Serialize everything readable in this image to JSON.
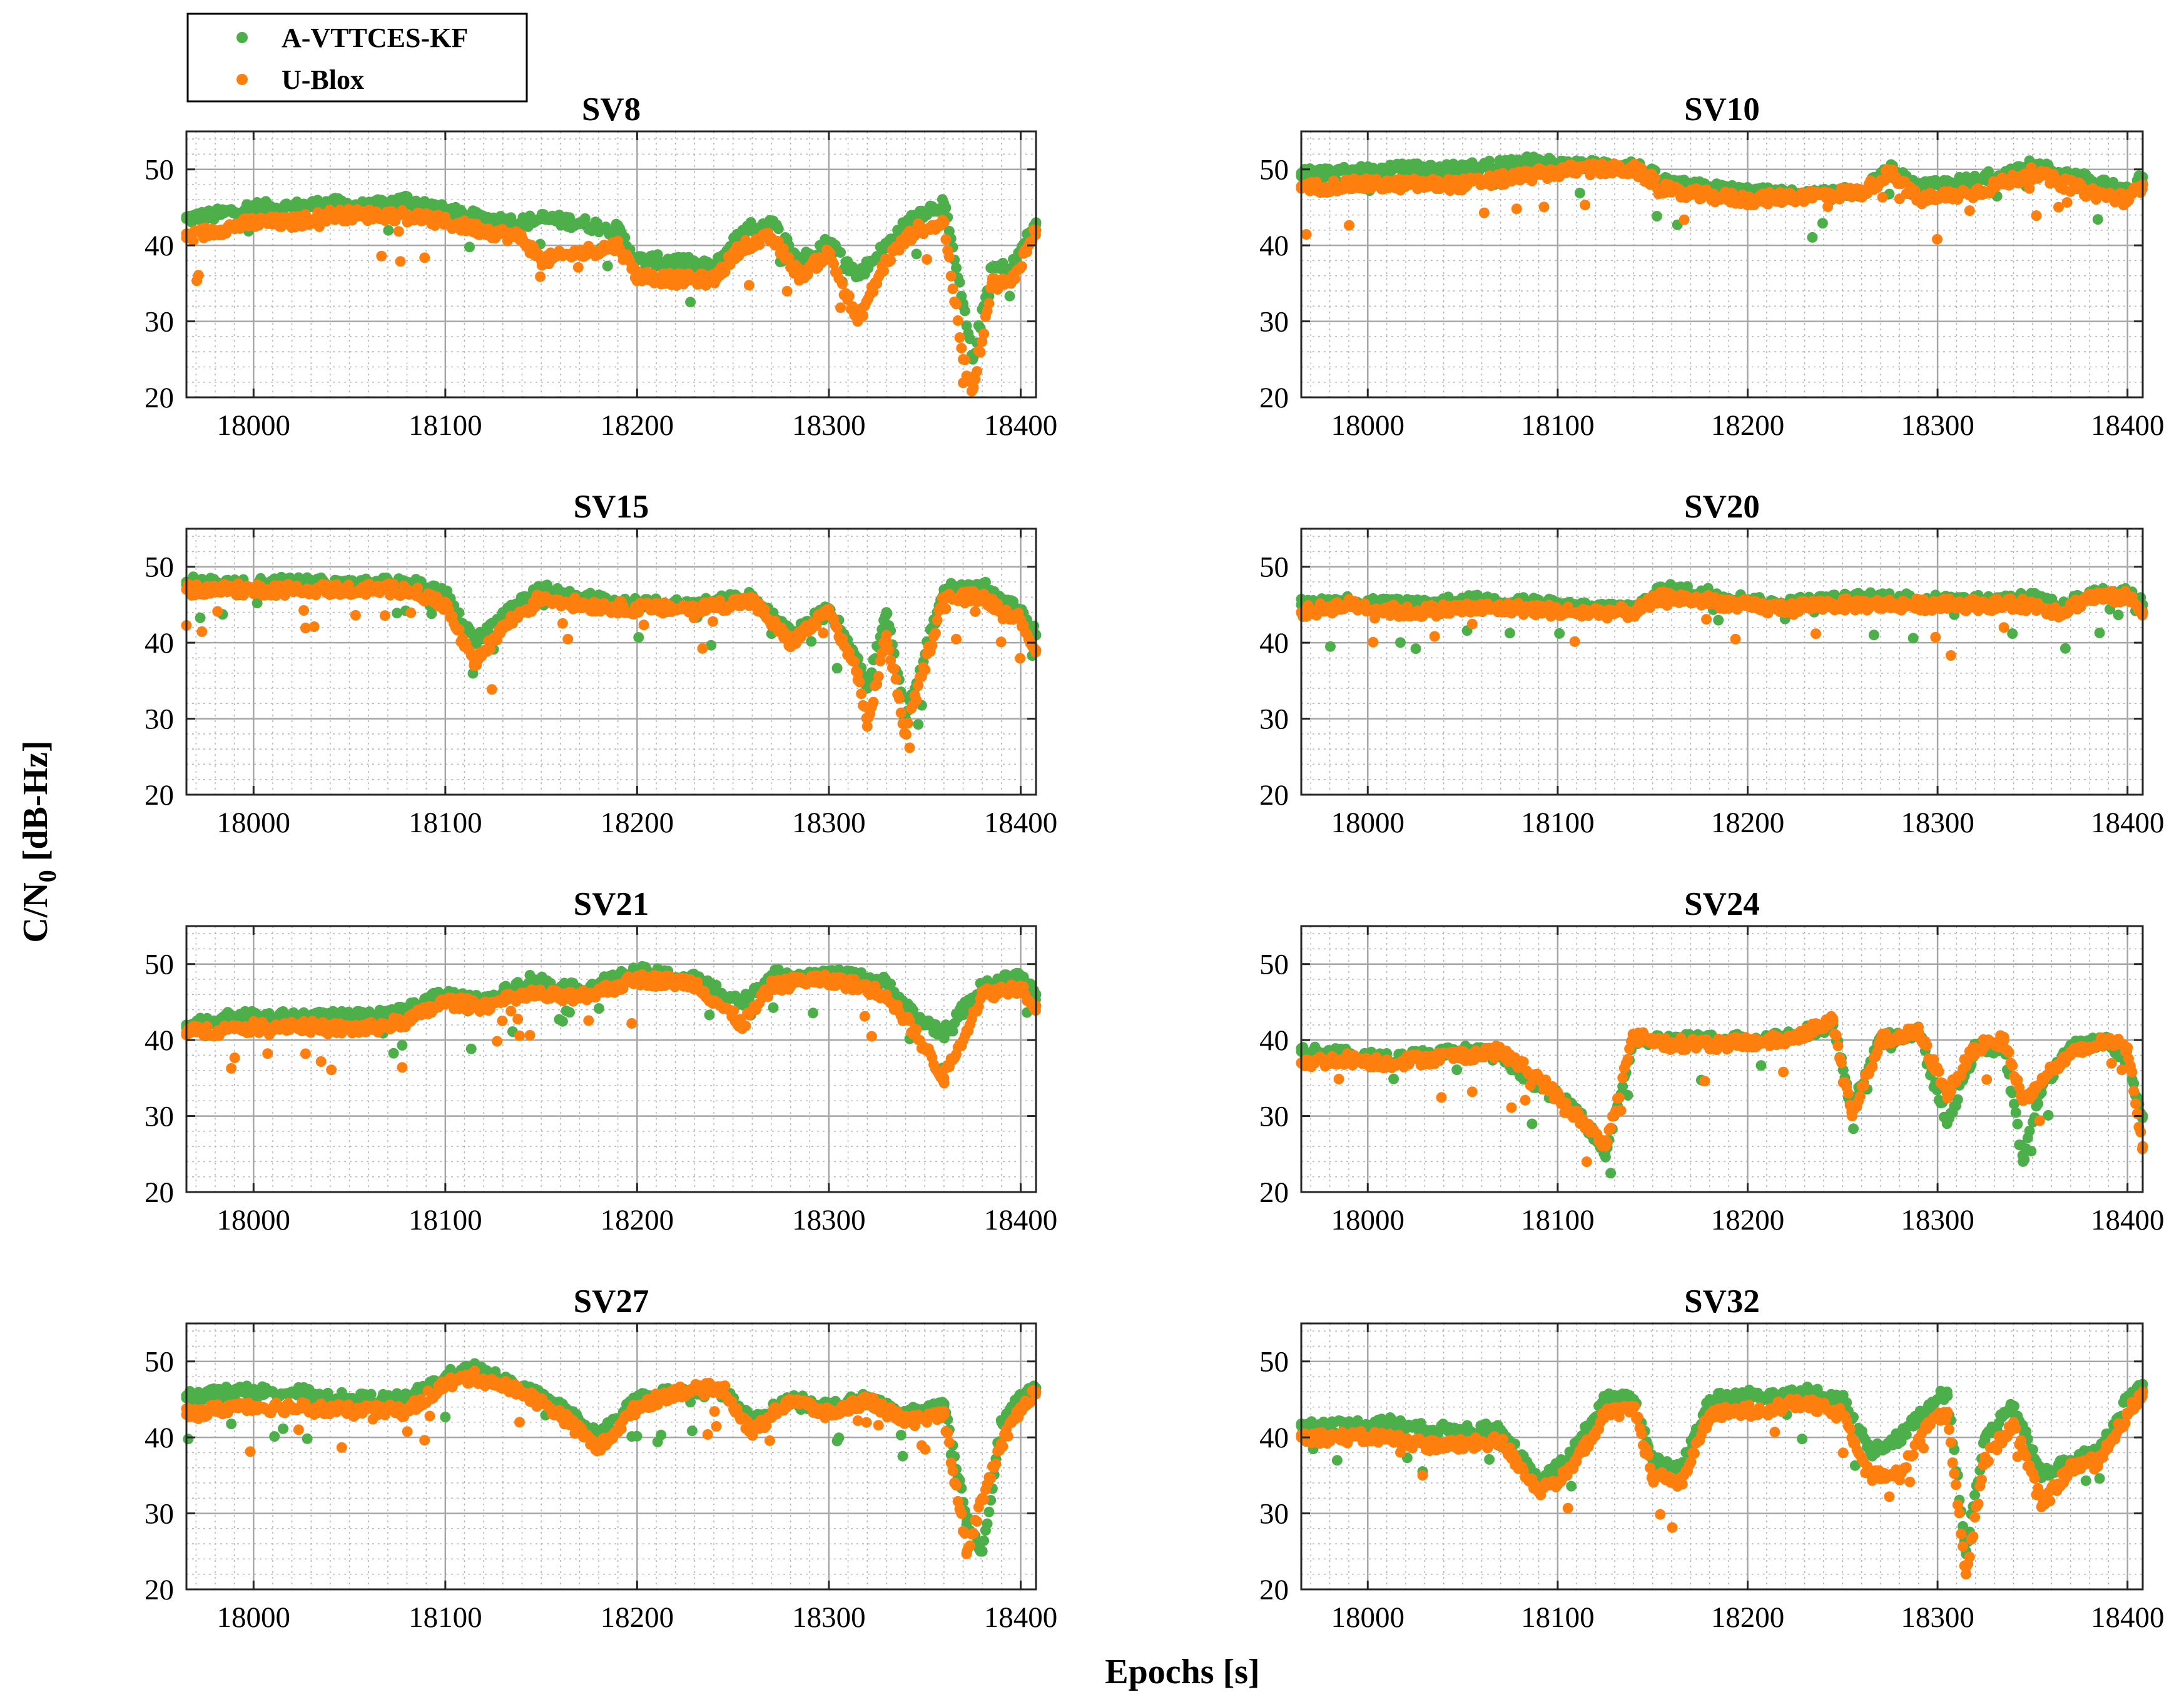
{
  "figure": {
    "ylabel_main": "C/N",
    "ylabel_sub": "0",
    "ylabel_unit": " [dB-Hz]",
    "xlabel": "Epochs [s]"
  },
  "legend": {
    "items": [
      {
        "label": "A-VTTCES-KF",
        "color": "#4daf4a"
      },
      {
        "label": "U-Blox",
        "color": "#ff7f0e"
      }
    ]
  },
  "chart_data": [
    {
      "type": "scatter",
      "title": "SV8",
      "xlim": [
        17965,
        18408
      ],
      "ylim": [
        20,
        55
      ],
      "xticks": [
        18000,
        18100,
        18200,
        18300,
        18400
      ],
      "yticks": [
        20,
        30,
        40,
        50
      ],
      "series": [
        {
          "name": "A-VTTCES-KF",
          "color": "#4daf4a",
          "x": [
            17965,
            17980,
            18000,
            18020,
            18040,
            18060,
            18080,
            18100,
            18120,
            18140,
            18150,
            18170,
            18190,
            18200,
            18220,
            18240,
            18255,
            18270,
            18285,
            18300,
            18315,
            18330,
            18345,
            18360,
            18370,
            18375,
            18385,
            18395,
            18408
          ],
          "y": [
            43.5,
            44,
            45,
            45,
            45.5,
            45,
            46,
            44.5,
            43.5,
            43,
            43.5,
            43,
            42,
            38,
            38,
            37,
            42,
            43,
            38,
            40.5,
            36,
            40,
            44,
            45.5,
            32,
            25,
            37,
            37,
            43
          ]
        },
        {
          "name": "U-Blox",
          "color": "#ff7f0e",
          "x": [
            17965,
            17980,
            18000,
            18020,
            18040,
            18060,
            18080,
            18100,
            18120,
            18140,
            18150,
            18170,
            18190,
            18200,
            18220,
            18240,
            18255,
            18270,
            18285,
            18300,
            18315,
            18330,
            18345,
            18360,
            18370,
            18375,
            18385,
            18395,
            18408
          ],
          "y": [
            41,
            42,
            43,
            43,
            44,
            44,
            44,
            43,
            42,
            41,
            38,
            39,
            40,
            36,
            35.5,
            35.5,
            40,
            41,
            36,
            39,
            30,
            38,
            42,
            43,
            25,
            21,
            35,
            35,
            42
          ]
        }
      ]
    },
    {
      "type": "scatter",
      "title": "SV10",
      "xlim": [
        17965,
        18408
      ],
      "ylim": [
        20,
        55
      ],
      "xticks": [
        18000,
        18100,
        18200,
        18300,
        18400
      ],
      "yticks": [
        20,
        30,
        40,
        50
      ],
      "series": [
        {
          "name": "A-VTTCES-KF",
          "color": "#4daf4a",
          "x": [
            17965,
            17990,
            18020,
            18050,
            18080,
            18110,
            18140,
            18160,
            18180,
            18200,
            18230,
            18260,
            18275,
            18290,
            18320,
            18350,
            18380,
            18400,
            18408
          ],
          "y": [
            49.5,
            49.5,
            50,
            50,
            51,
            50.5,
            50.5,
            48,
            47.5,
            47,
            46.5,
            47,
            50,
            47.5,
            48.5,
            50.5,
            48.5,
            47,
            49
          ]
        },
        {
          "name": "U-Blox",
          "color": "#ff7f0e",
          "x": [
            17965,
            17990,
            18020,
            18050,
            18080,
            18110,
            18140,
            18160,
            18180,
            18200,
            18230,
            18260,
            18275,
            18290,
            18320,
            18350,
            18380,
            18400,
            18408
          ],
          "y": [
            47.5,
            48,
            48,
            48,
            49,
            50,
            50,
            47,
            46.5,
            46,
            46.5,
            47,
            49.5,
            46,
            47,
            49.5,
            47,
            46,
            48
          ]
        }
      ]
    },
    {
      "type": "scatter",
      "title": "SV15",
      "xlim": [
        17965,
        18408
      ],
      "ylim": [
        20,
        55
      ],
      "xticks": [
        18000,
        18100,
        18200,
        18300,
        18400
      ],
      "yticks": [
        20,
        30,
        40,
        50
      ],
      "series": [
        {
          "name": "A-VTTCES-KF",
          "color": "#4daf4a",
          "x": [
            17965,
            17990,
            18020,
            18050,
            18080,
            18100,
            18115,
            18130,
            18150,
            18170,
            18200,
            18230,
            18260,
            18280,
            18300,
            18315,
            18320,
            18330,
            18340,
            18360,
            18380,
            18400,
            18408
          ],
          "y": [
            48,
            47.5,
            48,
            47.5,
            48,
            46.5,
            40,
            44,
            47,
            46,
            45,
            45,
            46,
            41,
            44.5,
            38,
            34,
            44,
            30,
            47,
            47.5,
            44,
            41
          ]
        },
        {
          "name": "U-Blox",
          "color": "#ff7f0e",
          "x": [
            17965,
            17990,
            18020,
            18050,
            18080,
            18100,
            18115,
            18130,
            18150,
            18170,
            18200,
            18230,
            18260,
            18280,
            18300,
            18315,
            18320,
            18330,
            18340,
            18360,
            18380,
            18400,
            18408
          ],
          "y": [
            47,
            47,
            47,
            47,
            47,
            45,
            37,
            42,
            46,
            45,
            44.5,
            44.5,
            45.5,
            40,
            44,
            36,
            29,
            41,
            28,
            46,
            46,
            43,
            39
          ]
        }
      ]
    },
    {
      "type": "scatter",
      "title": "SV20",
      "xlim": [
        17965,
        18408
      ],
      "ylim": [
        20,
        55
      ],
      "xticks": [
        18000,
        18100,
        18200,
        18300,
        18400
      ],
      "yticks": [
        20,
        30,
        40,
        50
      ],
      "series": [
        {
          "name": "A-VTTCES-KF",
          "color": "#4daf4a",
          "x": [
            17965,
            17990,
            18020,
            18050,
            18080,
            18110,
            18140,
            18155,
            18180,
            18210,
            18240,
            18270,
            18300,
            18330,
            18350,
            18365,
            18380,
            18400,
            18408
          ],
          "y": [
            45,
            45.5,
            45,
            45.5,
            45.5,
            44.5,
            44.5,
            47,
            46.5,
            45,
            45.5,
            46,
            45.5,
            45.5,
            46,
            44.5,
            46.5,
            46.5,
            45
          ]
        },
        {
          "name": "U-Blox",
          "color": "#ff7f0e",
          "x": [
            17965,
            17990,
            18020,
            18050,
            18080,
            18110,
            18140,
            18155,
            18180,
            18210,
            18240,
            18270,
            18300,
            18330,
            18350,
            18365,
            18380,
            18400,
            18408
          ],
          "y": [
            44,
            45,
            44,
            44.5,
            44.5,
            44,
            44,
            46,
            45.5,
            44.5,
            45,
            45,
            45,
            45,
            45,
            44,
            46,
            46,
            44
          ]
        }
      ]
    },
    {
      "type": "scatter",
      "title": "SV21",
      "xlim": [
        17965,
        18408
      ],
      "ylim": [
        20,
        55
      ],
      "xticks": [
        18000,
        18100,
        18200,
        18300,
        18400
      ],
      "yticks": [
        20,
        30,
        40,
        50
      ],
      "series": [
        {
          "name": "A-VTTCES-KF",
          "color": "#4daf4a",
          "x": [
            17965,
            17990,
            18020,
            18040,
            18060,
            18080,
            18100,
            18120,
            18145,
            18170,
            18200,
            18230,
            18255,
            18270,
            18290,
            18310,
            18330,
            18345,
            18360,
            18380,
            18400,
            18408
          ],
          "y": [
            42,
            43,
            43,
            43,
            43,
            44,
            46,
            45,
            48,
            46.5,
            49,
            48,
            45,
            48.5,
            48.5,
            48.5,
            47.5,
            43,
            41,
            47,
            48.5,
            46
          ]
        },
        {
          "name": "U-Blox",
          "color": "#ff7f0e",
          "x": [
            17965,
            17990,
            18020,
            18040,
            18060,
            18080,
            18100,
            18120,
            18145,
            18170,
            18200,
            18230,
            18255,
            18270,
            18290,
            18310,
            18330,
            18345,
            18360,
            18380,
            18400,
            18408
          ],
          "y": [
            41,
            41.5,
            42,
            41.5,
            41.5,
            42.5,
            45,
            44.5,
            46,
            45.5,
            48,
            47.5,
            42,
            47,
            48,
            47.5,
            46,
            41,
            35,
            46,
            47,
            44.5
          ]
        }
      ]
    },
    {
      "type": "scatter",
      "title": "SV24",
      "xlim": [
        17965,
        18408
      ],
      "ylim": [
        20,
        55
      ],
      "xticks": [
        18000,
        18100,
        18200,
        18300,
        18400
      ],
      "yticks": [
        20,
        30,
        40,
        50
      ],
      "series": [
        {
          "name": "A-VTTCES-KF",
          "color": "#4daf4a",
          "x": [
            17965,
            17990,
            18010,
            18030,
            18050,
            18070,
            18090,
            18110,
            18125,
            18140,
            18160,
            18190,
            18220,
            18245,
            18255,
            18270,
            18290,
            18305,
            18320,
            18335,
            18345,
            18355,
            18370,
            18390,
            18400,
            18408
          ],
          "y": [
            38.5,
            38,
            37.5,
            38,
            38.5,
            38,
            34,
            31,
            25,
            40,
            40,
            40,
            40.5,
            42,
            31,
            40,
            41,
            29,
            39,
            39,
            24,
            34,
            39,
            40,
            37,
            30
          ]
        },
        {
          "name": "U-Blox",
          "color": "#ff7f0e",
          "x": [
            17965,
            17990,
            18010,
            18030,
            18050,
            18070,
            18090,
            18110,
            18125,
            18140,
            18160,
            18190,
            18220,
            18245,
            18255,
            18270,
            18290,
            18305,
            18320,
            18335,
            18345,
            18355,
            18370,
            18390,
            18400,
            18408
          ],
          "y": [
            37,
            37.5,
            37,
            37.5,
            38,
            38.5,
            35,
            30,
            26,
            40.5,
            39.5,
            39.5,
            40,
            42.5,
            30,
            40,
            41,
            33,
            39,
            40,
            32,
            35,
            38,
            40,
            39,
            26
          ]
        }
      ]
    },
    {
      "type": "scatter",
      "title": "SV27",
      "xlim": [
        17965,
        18408
      ],
      "ylim": [
        20,
        55
      ],
      "xticks": [
        18000,
        18100,
        18200,
        18300,
        18400
      ],
      "yticks": [
        20,
        30,
        40,
        50
      ],
      "series": [
        {
          "name": "A-VTTCES-KF",
          "color": "#4daf4a",
          "x": [
            17965,
            17990,
            18020,
            18050,
            18080,
            18100,
            18115,
            18140,
            18160,
            18180,
            18200,
            18220,
            18245,
            18260,
            18280,
            18300,
            18320,
            18340,
            18360,
            18372,
            18380,
            18390,
            18400,
            18408
          ],
          "y": [
            45.5,
            46,
            46,
            45,
            45,
            48,
            49,
            46.5,
            44,
            40,
            45,
            46,
            46,
            42,
            45,
            44,
            45,
            43,
            44,
            29,
            25,
            42,
            45,
            46.5
          ]
        },
        {
          "name": "U-Blox",
          "color": "#ff7f0e",
          "x": [
            17965,
            17990,
            18020,
            18050,
            18080,
            18100,
            18115,
            18140,
            18160,
            18180,
            18200,
            18220,
            18245,
            18260,
            18280,
            18300,
            18320,
            18340,
            18360,
            18372,
            18380,
            18390,
            18400,
            18408
          ],
          "y": [
            43,
            44,
            44,
            43.5,
            43.5,
            47,
            48,
            46,
            43,
            38.5,
            44,
            46,
            46.5,
            40.5,
            45,
            43,
            45,
            42,
            43,
            25,
            32,
            39,
            44,
            46
          ]
        }
      ]
    },
    {
      "type": "scatter",
      "title": "SV32",
      "xlim": [
        17965,
        18408
      ],
      "ylim": [
        20,
        55
      ],
      "xticks": [
        18000,
        18100,
        18200,
        18300,
        18400
      ],
      "yticks": [
        20,
        30,
        40,
        50
      ],
      "series": [
        {
          "name": "A-VTTCES-KF",
          "color": "#4daf4a",
          "x": [
            17965,
            17990,
            18010,
            18030,
            18050,
            18070,
            18090,
            18105,
            18125,
            18140,
            18150,
            18165,
            18180,
            18200,
            18230,
            18250,
            18265,
            18280,
            18295,
            18305,
            18315,
            18325,
            18340,
            18355,
            18370,
            18385,
            18400,
            18408
          ],
          "y": [
            41.5,
            41.5,
            42,
            41,
            41,
            41,
            34,
            37,
            45,
            45,
            37,
            36,
            45,
            45.5,
            46,
            45,
            38,
            40,
            44,
            46,
            25,
            40,
            44,
            35,
            37,
            38,
            45,
            47
          ]
        },
        {
          "name": "U-Blox",
          "color": "#ff7f0e",
          "x": [
            17965,
            17990,
            18010,
            18030,
            18050,
            18070,
            18090,
            18105,
            18125,
            18140,
            18150,
            18165,
            18180,
            18200,
            18230,
            18250,
            18265,
            18280,
            18295,
            18305,
            18315,
            18325,
            18340,
            18355,
            18370,
            18385,
            18400,
            18408
          ],
          "y": [
            40,
            40,
            40,
            39,
            39,
            39.5,
            33,
            35,
            43,
            44,
            35,
            34,
            43,
            43.5,
            44.5,
            43,
            35,
            35,
            42,
            43,
            22,
            37,
            42,
            31,
            36,
            37,
            43,
            46
          ]
        }
      ]
    }
  ]
}
